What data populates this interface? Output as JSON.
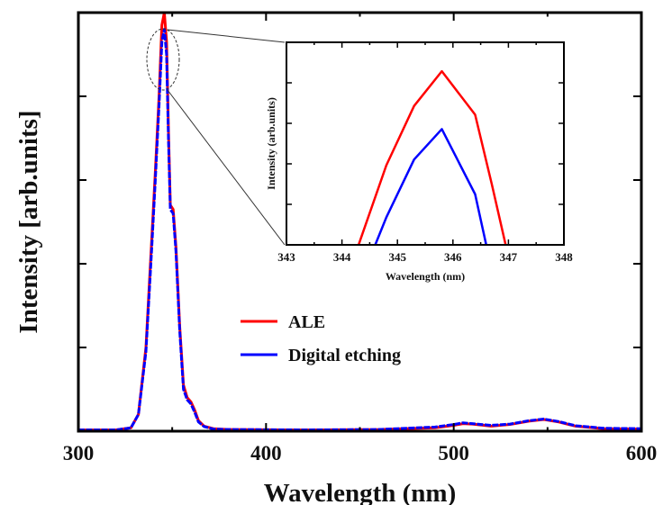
{
  "chart_data": [
    {
      "type": "line",
      "title": "",
      "xlabel": "Wavelength (nm)",
      "ylabel": "Intensity [arb.units]",
      "xlim": [
        300,
        600
      ],
      "ylim": [
        0,
        1.0
      ],
      "x_ticks": [
        "300",
        "400",
        "500",
        "600"
      ],
      "grid": false,
      "legend_position": "center-right",
      "series": [
        {
          "name": "ALE",
          "color": "#ff0000",
          "points": [
            [
              300,
              0.003
            ],
            [
              320,
              0.003
            ],
            [
              328,
              0.008
            ],
            [
              332,
              0.04
            ],
            [
              336,
              0.2
            ],
            [
              339,
              0.45
            ],
            [
              341,
              0.62
            ],
            [
              343,
              0.8
            ],
            [
              344.5,
              0.97
            ],
            [
              345.8,
              1.0
            ],
            [
              347,
              0.93
            ],
            [
              348,
              0.72
            ],
            [
              349,
              0.54
            ],
            [
              350.5,
              0.53
            ],
            [
              352,
              0.44
            ],
            [
              354,
              0.25
            ],
            [
              356,
              0.11
            ],
            [
              358,
              0.08
            ],
            [
              360,
              0.07
            ],
            [
              362,
              0.05
            ],
            [
              364,
              0.025
            ],
            [
              367,
              0.012
            ],
            [
              372,
              0.006
            ],
            [
              380,
              0.004
            ],
            [
              420,
              0.003
            ],
            [
              460,
              0.004
            ],
            [
              490,
              0.008
            ],
            [
              500,
              0.014
            ],
            [
              505,
              0.018
            ],
            [
              510,
              0.017
            ],
            [
              520,
              0.012
            ],
            [
              530,
              0.016
            ],
            [
              540,
              0.024
            ],
            [
              548,
              0.028
            ],
            [
              556,
              0.022
            ],
            [
              565,
              0.012
            ],
            [
              580,
              0.006
            ],
            [
              600,
              0.005
            ]
          ]
        },
        {
          "name": "Digital etching",
          "color": "#0000ff",
          "points": [
            [
              300,
              0.003
            ],
            [
              320,
              0.003
            ],
            [
              328,
              0.008
            ],
            [
              332,
              0.04
            ],
            [
              336,
              0.19
            ],
            [
              339,
              0.43
            ],
            [
              341,
              0.6
            ],
            [
              343,
              0.78
            ],
            [
              344.5,
              0.93
            ],
            [
              345.8,
              0.96
            ],
            [
              347,
              0.9
            ],
            [
              348,
              0.7
            ],
            [
              349,
              0.53
            ],
            [
              350.5,
              0.52
            ],
            [
              352,
              0.43
            ],
            [
              354,
              0.24
            ],
            [
              356,
              0.1
            ],
            [
              358,
              0.075
            ],
            [
              360,
              0.065
            ],
            [
              362,
              0.045
            ],
            [
              364,
              0.022
            ],
            [
              367,
              0.011
            ],
            [
              372,
              0.005
            ],
            [
              380,
              0.004
            ],
            [
              420,
              0.003
            ],
            [
              460,
              0.004
            ],
            [
              490,
              0.01
            ],
            [
              500,
              0.016
            ],
            [
              505,
              0.02
            ],
            [
              510,
              0.018
            ],
            [
              520,
              0.014
            ],
            [
              530,
              0.017
            ],
            [
              540,
              0.025
            ],
            [
              548,
              0.029
            ],
            [
              556,
              0.023
            ],
            [
              565,
              0.013
            ],
            [
              580,
              0.007
            ],
            [
              600,
              0.006
            ]
          ]
        }
      ]
    },
    {
      "type": "line",
      "title": "",
      "xlabel": "Wavelength (nm)",
      "ylabel": "Intensity (arb.units)",
      "xlim": [
        343,
        348
      ],
      "ylim": [
        0.88,
        1.02
      ],
      "x_ticks": [
        "343",
        "344",
        "345",
        "346",
        "347",
        "348"
      ],
      "grid": false,
      "series": [
        {
          "name": "ALE",
          "color": "#ff0000",
          "points": [
            [
              344.3,
              0.88
            ],
            [
              344.8,
              0.935
            ],
            [
              345.3,
              0.976
            ],
            [
              345.8,
              1.0
            ],
            [
              346.4,
              0.97
            ],
            [
              346.7,
              0.922
            ],
            [
              346.95,
              0.88
            ]
          ]
        },
        {
          "name": "Digital etching",
          "color": "#0000ff",
          "points": [
            [
              344.6,
              0.88
            ],
            [
              344.8,
              0.899
            ],
            [
              345.3,
              0.939
            ],
            [
              345.8,
              0.96
            ],
            [
              346.4,
              0.915
            ],
            [
              346.6,
              0.88
            ]
          ]
        }
      ]
    }
  ]
}
